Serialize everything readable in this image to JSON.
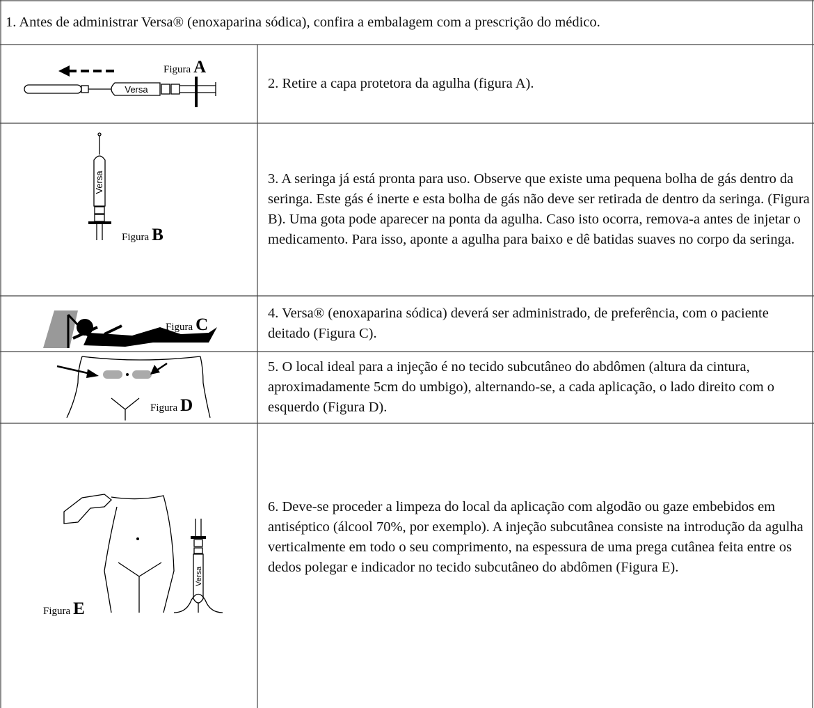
{
  "steps": [
    {
      "text": "1. Antes de administrar Versa® (enoxaparina sódica), confira a embalagem com a prescrição do médico."
    },
    {
      "figure": {
        "caption": "Figura",
        "letter": "A",
        "product_label": "Versa"
      },
      "text": "2. Retire a capa protetora da agulha (figura A)."
    },
    {
      "figure": {
        "caption": "Figura",
        "letter": "B",
        "product_label": "Versa"
      },
      "text": "3. A seringa já está pronta para uso. Observe que existe uma pequena bolha de gás dentro da seringa. Este gás é inerte e esta bolha de gás não deve ser retirada de dentro da seringa. (Figura B). Uma gota pode aparecer na ponta da agulha. Caso isto ocorra, remova-a antes de injetar o medicamento. Para isso, aponte a agulha para baixo e dê batidas suaves no corpo da seringa."
    },
    {
      "figure": {
        "caption": "Figura",
        "letter": "C"
      },
      "text": "4. Versa® (enoxaparina sódica) deverá ser administrado, de preferência, com o paciente deitado (Figura C)."
    },
    {
      "figure": {
        "caption": "Figura",
        "letter": "D"
      },
      "text": "5. O local ideal para a injeção é no tecido subcutâneo do abdômen (altura da cintura, aproximadamente 5cm do umbigo), alternando-se, a cada aplicação, o lado direito com o esquerdo (Figura D)."
    },
    {
      "figure": {
        "caption": "Figura",
        "letter": "E",
        "product_label": "Versa"
      },
      "text": "6. Deve-se proceder a limpeza do local da aplicação com algodão ou gaze embebidos em antiséptico (álcool 70%, por exemplo). A injeção subcutânea consiste na introdução da agulha verticalmente em todo o seu comprimento, na espessura de uma prega cutânea feita entre os dedos polegar e indicador no tecido subcutâneo do abdômen (Figura E)."
    }
  ]
}
